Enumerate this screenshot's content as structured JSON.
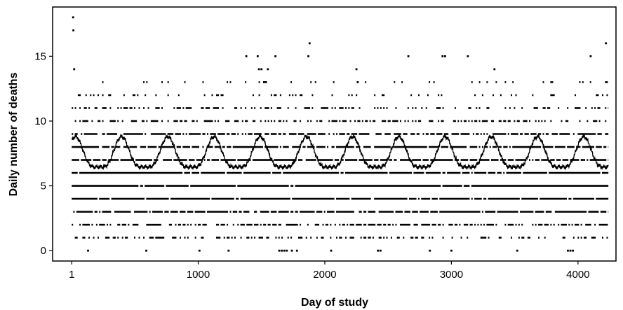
{
  "chart_data": {
    "type": "scatter",
    "title": "",
    "xlabel": "Day of study",
    "ylabel": "Daily number of deaths",
    "xlim": [
      -150,
      4300
    ],
    "ylim": [
      -0.8,
      18.8
    ],
    "x_ticks": [
      1,
      1000,
      2000,
      3000,
      4000
    ],
    "x_tick_labels": [
      "1",
      "1000",
      "2000",
      "3000",
      "4000"
    ],
    "y_ticks": [
      0,
      5,
      10,
      15
    ],
    "y_tick_labels": [
      "0",
      "5",
      "10",
      "15"
    ],
    "grid": false,
    "legend": "none",
    "n_days": 4240,
    "series": [
      {
        "kind": "points",
        "description": "observed daily counts",
        "points": [
          {
            "x": 12,
            "y": 18
          },
          {
            "x": 14,
            "y": 17
          },
          {
            "x": 20,
            "y": 14
          },
          {
            "x": 1470,
            "y": 15
          },
          {
            "x": 1480,
            "y": 14
          },
          {
            "x": 1500,
            "y": 14
          },
          {
            "x": 1520,
            "y": 13
          },
          {
            "x": 1535,
            "y": 13
          },
          {
            "x": 1550,
            "y": 14
          },
          {
            "x": 1380,
            "y": 15
          },
          {
            "x": 1610,
            "y": 15
          },
          {
            "x": 1880,
            "y": 16
          },
          {
            "x": 1870,
            "y": 15
          },
          {
            "x": 2250,
            "y": 14
          },
          {
            "x": 2260,
            "y": 13
          },
          {
            "x": 2660,
            "y": 15
          },
          {
            "x": 2930,
            "y": 15
          },
          {
            "x": 2950,
            "y": 15
          },
          {
            "x": 3130,
            "y": 15
          },
          {
            "x": 3340,
            "y": 14
          },
          {
            "x": 4100,
            "y": 15
          },
          {
            "x": 4220,
            "y": 16
          },
          {
            "x": 130,
            "y": 0
          },
          {
            "x": 590,
            "y": 0
          },
          {
            "x": 1010,
            "y": 0
          },
          {
            "x": 1240,
            "y": 0
          },
          {
            "x": 1640,
            "y": 0
          },
          {
            "x": 1660,
            "y": 0
          },
          {
            "x": 1680,
            "y": 0
          },
          {
            "x": 1700,
            "y": 0
          },
          {
            "x": 1740,
            "y": 0
          },
          {
            "x": 1780,
            "y": 0
          },
          {
            "x": 2050,
            "y": 0
          },
          {
            "x": 2420,
            "y": 0
          },
          {
            "x": 2440,
            "y": 0
          },
          {
            "x": 2830,
            "y": 0
          },
          {
            "x": 3000,
            "y": 0
          },
          {
            "x": 3520,
            "y": 0
          },
          {
            "x": 3920,
            "y": 0
          },
          {
            "x": 3940,
            "y": 0
          },
          {
            "x": 3960,
            "y": 0
          }
        ],
        "bands": [
          {
            "y": 13,
            "density": 0.12
          },
          {
            "y": 12,
            "density": 0.18
          },
          {
            "y": 11,
            "density": 0.35
          },
          {
            "y": 10,
            "density": 0.45
          },
          {
            "y": 9,
            "density": 0.72
          },
          {
            "y": 8,
            "density": 0.82
          },
          {
            "y": 7,
            "density": 0.88
          },
          {
            "y": 6,
            "density": 0.95
          },
          {
            "y": 5,
            "density": 0.97
          },
          {
            "y": 4,
            "density": 0.94
          },
          {
            "y": 3,
            "density": 0.82
          },
          {
            "y": 2,
            "density": 0.62
          },
          {
            "y": 1,
            "density": 0.35
          }
        ]
      },
      {
        "kind": "line",
        "description": "smoothed seasonal mean",
        "period_days": 365,
        "first_peak_day": 30,
        "peak": 8.8,
        "trough": 5.8
      }
    ]
  }
}
